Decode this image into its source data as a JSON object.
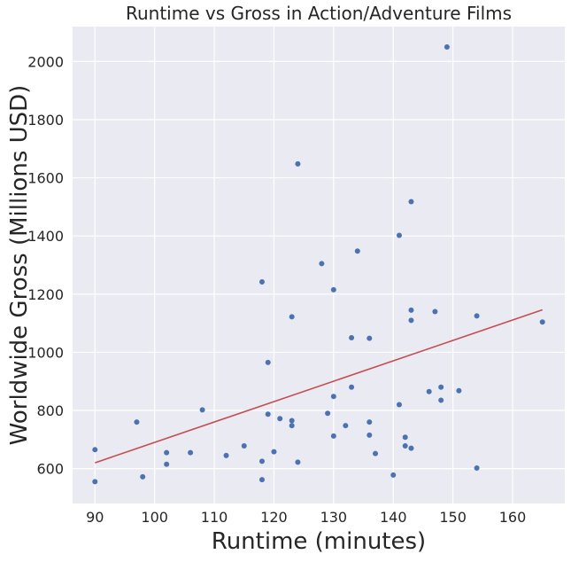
{
  "chart_data": {
    "type": "scatter",
    "title": "Runtime vs Gross in Action/Adventure Films",
    "xlabel": "Runtime (minutes)",
    "ylabel": "Worldwide Gross (Millions USD)",
    "xlim": [
      86.25,
      168.75
    ],
    "ylim": [
      480,
      2120
    ],
    "x_ticks": [
      90,
      100,
      110,
      120,
      130,
      140,
      150,
      160
    ],
    "y_ticks": [
      600,
      800,
      1000,
      1200,
      1400,
      1600,
      1800,
      2000
    ],
    "grid": true,
    "legend": "none",
    "colors": {
      "background": "#eaeaf2",
      "grid": "#ffffff",
      "points": "#4c72b0",
      "trendline": "#c44e52"
    },
    "points": [
      {
        "x": 90,
        "y": 665
      },
      {
        "x": 90,
        "y": 555
      },
      {
        "x": 97,
        "y": 760
      },
      {
        "x": 98,
        "y": 572
      },
      {
        "x": 102,
        "y": 655
      },
      {
        "x": 102,
        "y": 615
      },
      {
        "x": 106,
        "y": 655
      },
      {
        "x": 108,
        "y": 802
      },
      {
        "x": 112,
        "y": 645
      },
      {
        "x": 115,
        "y": 678
      },
      {
        "x": 118,
        "y": 1242
      },
      {
        "x": 118,
        "y": 625
      },
      {
        "x": 118,
        "y": 562
      },
      {
        "x": 119,
        "y": 965
      },
      {
        "x": 119,
        "y": 787
      },
      {
        "x": 120,
        "y": 658
      },
      {
        "x": 121,
        "y": 772
      },
      {
        "x": 123,
        "y": 1122
      },
      {
        "x": 123,
        "y": 765
      },
      {
        "x": 123,
        "y": 748
      },
      {
        "x": 124,
        "y": 1648
      },
      {
        "x": 124,
        "y": 622
      },
      {
        "x": 128,
        "y": 1305
      },
      {
        "x": 129,
        "y": 790
      },
      {
        "x": 130,
        "y": 1215
      },
      {
        "x": 130,
        "y": 848
      },
      {
        "x": 130,
        "y": 712
      },
      {
        "x": 132,
        "y": 748
      },
      {
        "x": 133,
        "y": 1050
      },
      {
        "x": 133,
        "y": 880
      },
      {
        "x": 134,
        "y": 1348
      },
      {
        "x": 136,
        "y": 1048
      },
      {
        "x": 136,
        "y": 760
      },
      {
        "x": 136,
        "y": 715
      },
      {
        "x": 137,
        "y": 652
      },
      {
        "x": 140,
        "y": 578
      },
      {
        "x": 141,
        "y": 1402
      },
      {
        "x": 141,
        "y": 820
      },
      {
        "x": 142,
        "y": 708
      },
      {
        "x": 142,
        "y": 678
      },
      {
        "x": 143,
        "y": 1518
      },
      {
        "x": 143,
        "y": 1145
      },
      {
        "x": 143,
        "y": 1110
      },
      {
        "x": 143,
        "y": 670
      },
      {
        "x": 146,
        "y": 865
      },
      {
        "x": 147,
        "y": 1140
      },
      {
        "x": 148,
        "y": 880
      },
      {
        "x": 148,
        "y": 835
      },
      {
        "x": 149,
        "y": 2050
      },
      {
        "x": 151,
        "y": 868
      },
      {
        "x": 154,
        "y": 1125
      },
      {
        "x": 154,
        "y": 602
      },
      {
        "x": 165,
        "y": 1104
      }
    ],
    "trendline": {
      "x": [
        90,
        165
      ],
      "y": [
        620,
        1146
      ]
    }
  }
}
